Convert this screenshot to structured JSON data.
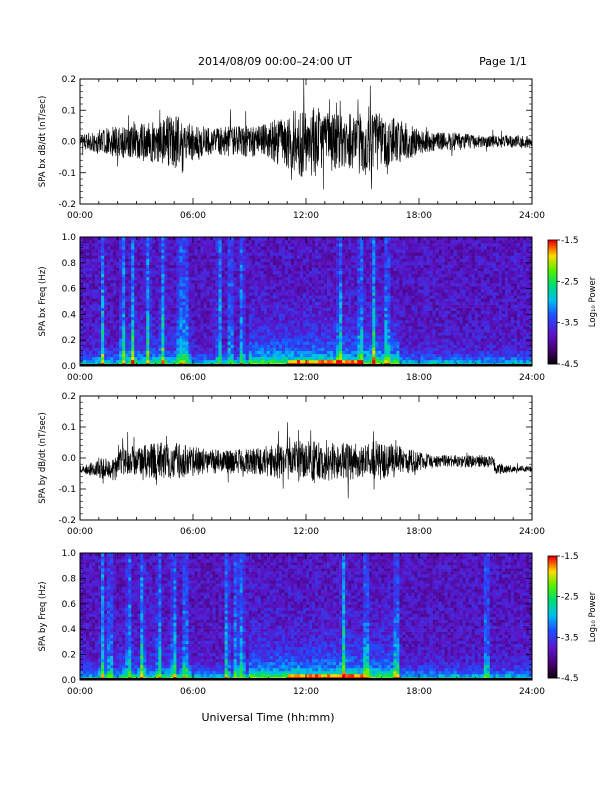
{
  "header": {
    "title": "2014/08/09  00:00–24:00 UT",
    "page": "Page 1/1"
  },
  "footer": {
    "xlabel": "Universal Time (hh:mm)"
  },
  "colorbar": {
    "label": "Log₁₀ Power",
    "ticks": [
      -1.5,
      -2.5,
      -3.5,
      -4.5
    ],
    "tick_labels": [
      "-1.5",
      "-2.5",
      "-3.5",
      "-4.5"
    ],
    "range": [
      -4.5,
      -1.5
    ]
  },
  "chart_data": [
    {
      "type": "line",
      "ylabel": "SPA bx dB/dt (nT/sec)",
      "xlim": [
        0,
        24
      ],
      "ylim": [
        -0.2,
        0.2
      ],
      "x_tick_labels": [
        "00:00",
        "06:00",
        "12:00",
        "18:00",
        "24:00"
      ],
      "y_tick_labels": [
        "-0.2",
        "-0.1",
        "0.0",
        "0.1",
        "0.2"
      ],
      "y_ticks": [
        -0.2,
        -0.1,
        0.0,
        0.1,
        0.2
      ],
      "envelope": {
        "hours": [
          0,
          1,
          2,
          3,
          4,
          5,
          6,
          7,
          8,
          9,
          10,
          11,
          12,
          13,
          14,
          15,
          16,
          17,
          18,
          19,
          20,
          21,
          22,
          23,
          24
        ],
        "amplitude": [
          0.02,
          0.04,
          0.05,
          0.06,
          0.07,
          0.09,
          0.06,
          0.04,
          0.05,
          0.05,
          0.06,
          0.09,
          0.12,
          0.1,
          0.09,
          0.1,
          0.09,
          0.07,
          0.04,
          0.03,
          0.03,
          0.02,
          0.02,
          0.02,
          0.02
        ]
      }
    },
    {
      "type": "heatmap",
      "ylabel": "SPA bx Freq (Hz)",
      "xlim": [
        0,
        24
      ],
      "ylim": [
        0,
        1
      ],
      "x_tick_labels": [
        "00:00",
        "06:00",
        "12:00",
        "18:00",
        "24:00"
      ],
      "y_tick_labels": [
        "0.0",
        "0.2",
        "0.4",
        "0.6",
        "0.8",
        "1.0"
      ],
      "y_ticks": [
        0,
        0.2,
        0.4,
        0.6,
        0.8,
        1.0
      ]
    },
    {
      "type": "line",
      "ylabel": "SPA by dB/dt (nT/sec)",
      "xlim": [
        0,
        24
      ],
      "ylim": [
        -0.2,
        0.2
      ],
      "x_tick_labels": [
        "00:00",
        "06:00",
        "12:00",
        "18:00",
        "24:00"
      ],
      "y_tick_labels": [
        "-0.2",
        "-0.1",
        "0.0",
        "0.1",
        "0.2"
      ],
      "y_ticks": [
        -0.2,
        -0.1,
        0.0,
        0.1,
        0.2
      ],
      "envelope": {
        "hours": [
          0,
          1,
          2,
          3,
          4,
          5,
          6,
          7,
          8,
          9,
          10,
          11,
          12,
          13,
          14,
          15,
          16,
          17,
          18,
          19,
          20,
          21,
          22,
          23,
          24
        ],
        "amplitude": [
          0.01,
          0.03,
          0.04,
          0.05,
          0.06,
          0.06,
          0.05,
          0.04,
          0.04,
          0.04,
          0.05,
          0.06,
          0.07,
          0.06,
          0.06,
          0.06,
          0.06,
          0.05,
          0.03,
          0.02,
          0.02,
          0.02,
          0.02,
          0.01,
          0.01
        ]
      }
    },
    {
      "type": "heatmap",
      "ylabel": "SPA by Freq (Hz)",
      "xlim": [
        0,
        24
      ],
      "ylim": [
        0,
        1
      ],
      "x_tick_labels": [
        "00:00",
        "06:00",
        "12:00",
        "18:00",
        "24:00"
      ],
      "y_tick_labels": [
        "0.0",
        "0.2",
        "0.4",
        "0.6",
        "0.8",
        "1.0"
      ],
      "y_ticks": [
        0,
        0.2,
        0.4,
        0.6,
        0.8,
        1.0
      ]
    }
  ]
}
